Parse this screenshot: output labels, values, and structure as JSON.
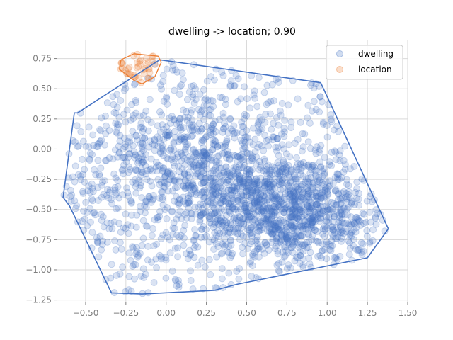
{
  "chart_data": {
    "type": "scatter",
    "title": "dwelling -> location; 0.90",
    "xlabel": "",
    "ylabel": "",
    "xlim": [
      -0.68,
      1.5
    ],
    "ylim": [
      -1.27,
      0.9
    ],
    "xticks": [
      -0.5,
      -0.25,
      0.0,
      0.25,
      0.5,
      0.75,
      1.0,
      1.25,
      1.5
    ],
    "xtick_labels": [
      "−0.50",
      "−0.25",
      "0.00",
      "0.25",
      "0.50",
      "0.75",
      "1.00",
      "1.25",
      "1.50"
    ],
    "yticks": [
      0.75,
      0.5,
      0.25,
      0.0,
      -0.25,
      -0.5,
      -0.75,
      -1.0,
      -1.25
    ],
    "ytick_labels": [
      "0.75",
      "0.50",
      "0.25",
      "0.00",
      "−0.25",
      "−0.50",
      "−0.75",
      "−1.00",
      "−1.25"
    ],
    "grid": true,
    "legend_position": "top-right",
    "series": [
      {
        "name": "dwelling",
        "color": "#4472C4",
        "marker_alpha": 0.2,
        "hull": [
          [
            -0.04,
            0.74
          ],
          [
            0.96,
            0.55
          ],
          [
            1.38,
            -0.66
          ],
          [
            1.25,
            -0.9
          ],
          [
            0.44,
            -1.12
          ],
          [
            0.3,
            -1.17
          ],
          [
            -0.15,
            -1.2
          ],
          [
            -0.34,
            -1.19
          ],
          [
            -0.6,
            -0.47
          ],
          [
            -0.64,
            -0.4
          ],
          [
            -0.57,
            0.3
          ],
          [
            -0.55,
            0.3
          ]
        ],
        "sample_points": [
          [
            0.1,
            0.0
          ],
          [
            0.3,
            -0.2
          ],
          [
            0.5,
            -0.3
          ],
          [
            0.8,
            -0.55
          ],
          [
            -0.2,
            -0.4
          ],
          [
            0.6,
            0.4
          ],
          [
            1.1,
            -0.7
          ],
          [
            0.2,
            0.3
          ],
          [
            -0.4,
            0.1
          ],
          [
            0.0,
            -0.8
          ]
        ]
      },
      {
        "name": "location",
        "color": "#ED7D31",
        "marker_alpha": 0.2,
        "hull": [
          [
            -0.2,
            0.79
          ],
          [
            -0.05,
            0.77
          ],
          [
            -0.03,
            0.72
          ],
          [
            -0.07,
            0.6
          ],
          [
            -0.15,
            0.54
          ],
          [
            -0.2,
            0.57
          ],
          [
            -0.29,
            0.66
          ],
          [
            -0.28,
            0.74
          ]
        ],
        "sample_points": [
          [
            -0.18,
            0.7
          ],
          [
            -0.1,
            0.65
          ],
          [
            -0.22,
            0.75
          ],
          [
            -0.12,
            0.74
          ],
          [
            -0.15,
            0.6
          ]
        ]
      }
    ]
  }
}
